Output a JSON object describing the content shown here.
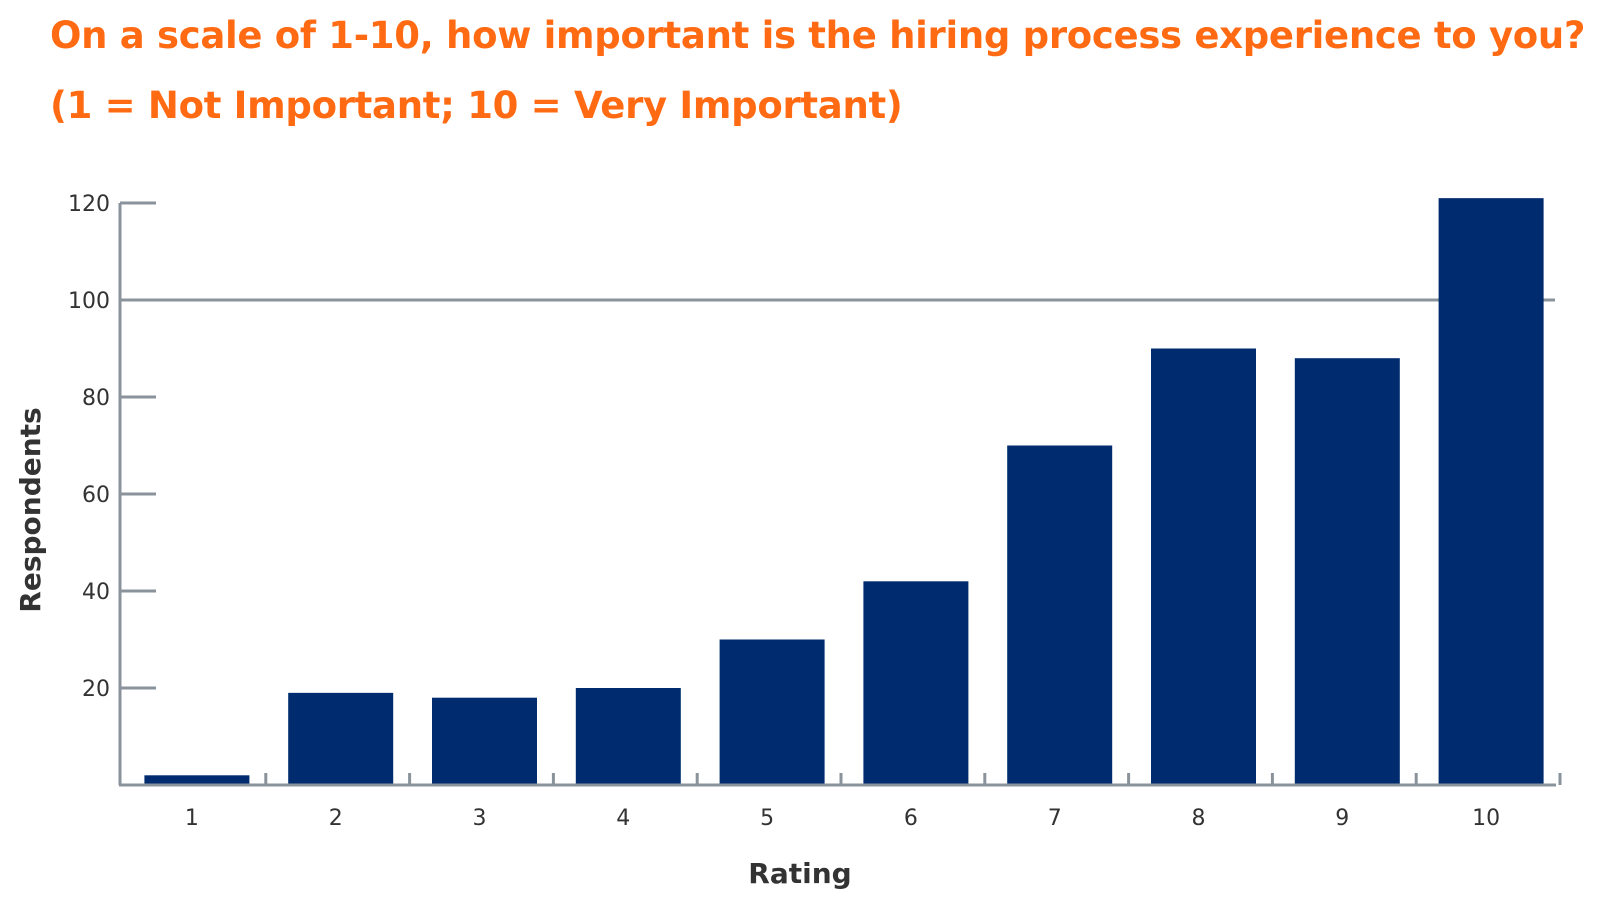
{
  "title": {
    "line1": "On a scale of 1-10, how important is the hiring process experience to you?",
    "line2": "(1 = Not Important; 10 = Very Important)"
  },
  "colors": {
    "title": "#ff6a13",
    "bar": "#002b6e",
    "axis": "#8a939b",
    "text": "#333333"
  },
  "chart_data": {
    "type": "bar",
    "title": "On a scale of 1-10, how important is the hiring process experience to you? (1 = Not Important; 10 = Very Important)",
    "xlabel": "Rating",
    "ylabel": "Respondents",
    "categories": [
      "1",
      "2",
      "3",
      "4",
      "5",
      "6",
      "7",
      "8",
      "9",
      "10"
    ],
    "values": [
      2,
      19,
      18,
      20,
      30,
      42,
      70,
      90,
      88,
      121
    ],
    "yticks": [
      20,
      40,
      60,
      80,
      100,
      120
    ],
    "ylim": [
      0,
      120
    ],
    "reference_line": 100,
    "grid": false,
    "legend": "none"
  }
}
